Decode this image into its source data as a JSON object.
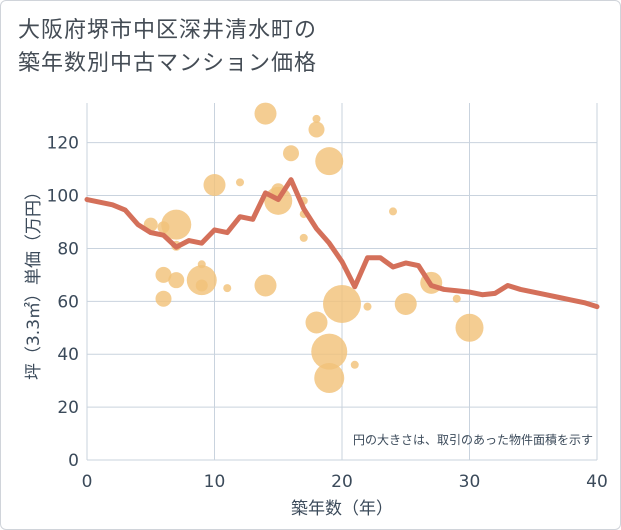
{
  "title_line1": "大阪府堺市中区深井清水町の",
  "title_line2": "築年数別中古マンション価格",
  "note": "円の大きさは、取引のあった物件面積を示す",
  "colors": {
    "line": "#d4705a",
    "bubble": "#f2c27a",
    "grid": "#c9d3de",
    "plot_bg": "#ffffff"
  },
  "chart_data": {
    "type": "scatter",
    "xlabel": "築年数（年）",
    "ylabel": "坪（3.3㎡）単価（万円）",
    "xlim": [
      0,
      40
    ],
    "ylim": [
      0,
      135
    ],
    "xticks": [
      0,
      10,
      20,
      30,
      40
    ],
    "yticks": [
      0,
      20,
      40,
      60,
      80,
      100,
      120
    ],
    "grid": true,
    "line_series": {
      "x": [
        0,
        1,
        2,
        3,
        4,
        5,
        6,
        7,
        8,
        9,
        10,
        11,
        12,
        13,
        14,
        15,
        16,
        17,
        18,
        19,
        20,
        21,
        22,
        23,
        24,
        25,
        26,
        27,
        28,
        29,
        30,
        31,
        32,
        33,
        34,
        35,
        36,
        37,
        38,
        39,
        40
      ],
      "y": [
        98.5,
        97.5,
        96.5,
        94.5,
        89,
        86,
        85,
        80.5,
        83,
        82,
        87,
        86,
        92,
        91,
        101,
        98.5,
        106,
        95,
        87.5,
        82,
        75,
        65.5,
        76.5,
        76.5,
        73,
        74.5,
        73.5,
        66,
        64.5,
        64,
        63.5,
        62.5,
        63,
        66,
        64.5,
        63.5,
        62.5,
        61.5,
        60.5,
        59.5,
        58
      ]
    },
    "bubbles": [
      {
        "x": 5,
        "y": 89,
        "size": 7
      },
      {
        "x": 6,
        "y": 88,
        "size": 6
      },
      {
        "x": 6,
        "y": 70,
        "size": 8
      },
      {
        "x": 6,
        "y": 61,
        "size": 8
      },
      {
        "x": 7,
        "y": 89,
        "size": 15
      },
      {
        "x": 7,
        "y": 81,
        "size": 5
      },
      {
        "x": 7,
        "y": 68,
        "size": 8
      },
      {
        "x": 9,
        "y": 68,
        "size": 15
      },
      {
        "x": 9,
        "y": 74,
        "size": 4
      },
      {
        "x": 9,
        "y": 66,
        "size": 6
      },
      {
        "x": 10,
        "y": 104,
        "size": 11
      },
      {
        "x": 11,
        "y": 65,
        "size": 4
      },
      {
        "x": 12,
        "y": 105,
        "size": 4
      },
      {
        "x": 14,
        "y": 131,
        "size": 11
      },
      {
        "x": 14,
        "y": 66,
        "size": 11
      },
      {
        "x": 15,
        "y": 98,
        "size": 14
      },
      {
        "x": 15,
        "y": 102,
        "size": 7
      },
      {
        "x": 16,
        "y": 116,
        "size": 8
      },
      {
        "x": 17,
        "y": 98,
        "size": 4
      },
      {
        "x": 17,
        "y": 93,
        "size": 4
      },
      {
        "x": 17,
        "y": 84,
        "size": 4
      },
      {
        "x": 18,
        "y": 129,
        "size": 4
      },
      {
        "x": 18,
        "y": 125,
        "size": 8
      },
      {
        "x": 18,
        "y": 52,
        "size": 11
      },
      {
        "x": 19,
        "y": 113,
        "size": 14
      },
      {
        "x": 19,
        "y": 41,
        "size": 18
      },
      {
        "x": 19,
        "y": 31,
        "size": 15
      },
      {
        "x": 20,
        "y": 59,
        "size": 19
      },
      {
        "x": 21,
        "y": 36,
        "size": 4
      },
      {
        "x": 22,
        "y": 58,
        "size": 4
      },
      {
        "x": 24,
        "y": 94,
        "size": 4
      },
      {
        "x": 25,
        "y": 59,
        "size": 11
      },
      {
        "x": 27,
        "y": 67,
        "size": 11
      },
      {
        "x": 29,
        "y": 61,
        "size": 4
      },
      {
        "x": 30,
        "y": 50,
        "size": 14
      }
    ]
  }
}
